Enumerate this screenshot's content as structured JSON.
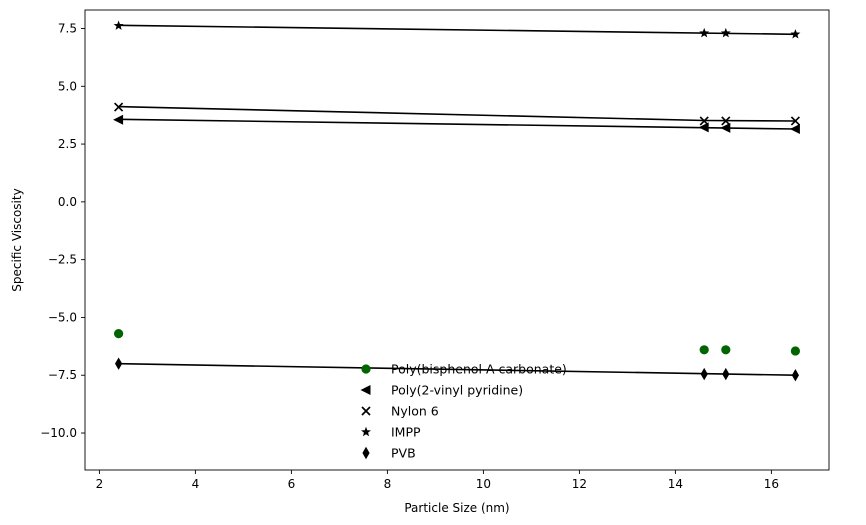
{
  "chart_data": {
    "type": "scatter",
    "title": "",
    "xlabel": "Particle Size (nm)",
    "ylabel": "Specific Viscosity",
    "xlim": [
      1.7,
      17.2
    ],
    "ylim": [
      -11.6,
      8.3
    ],
    "xticks": [
      2,
      4,
      6,
      8,
      10,
      12,
      14,
      16
    ],
    "yticks": [
      7.5,
      5.0,
      2.5,
      0.0,
      -2.5,
      -5.0,
      -7.5,
      -10.0
    ],
    "xtick_labels": [
      "2",
      "4",
      "6",
      "8",
      "10",
      "12",
      "14",
      "16"
    ],
    "ytick_labels": [
      "7.5",
      "5.0",
      "2.5",
      "0.0",
      "−2.5",
      "−5.0",
      "−7.5",
      "−10.0"
    ],
    "grid": false,
    "legend": {
      "placement": "lower-center",
      "frame": false
    },
    "series": [
      {
        "name": "Poly(bisphenol A carbonate)",
        "marker": "circle",
        "color": "#006400",
        "x": [
          2.4,
          14.6,
          15.05,
          16.5
        ],
        "y": [
          -5.7,
          -6.4,
          -6.4,
          -6.45
        ],
        "fit": null
      },
      {
        "name": "Poly(2-vinyl pyridine)",
        "marker": "triangle-left",
        "color": "#000000",
        "x": [
          2.4,
          14.6,
          15.05,
          16.5
        ],
        "y": [
          3.55,
          3.22,
          3.2,
          3.15
        ],
        "fit": [
          [
            2.4,
            3.57
          ],
          [
            16.5,
            3.15
          ]
        ]
      },
      {
        "name": "Nylon 6",
        "marker": "x",
        "color": "#000000",
        "x": [
          2.4,
          14.6,
          15.05,
          16.5
        ],
        "y": [
          4.1,
          3.5,
          3.5,
          3.5
        ],
        "fit": [
          [
            2.4,
            4.12
          ],
          [
            14.6,
            3.52
          ],
          [
            16.5,
            3.5
          ]
        ]
      },
      {
        "name": "IMPP",
        "marker": "star",
        "color": "#000000",
        "x": [
          2.4,
          14.6,
          15.05,
          16.5
        ],
        "y": [
          7.62,
          7.3,
          7.3,
          7.25
        ],
        "fit": [
          [
            2.4,
            7.64
          ],
          [
            16.5,
            7.25
          ]
        ]
      },
      {
        "name": "PVB",
        "marker": "thin-diamond",
        "color": "#000000",
        "x": [
          2.4,
          14.6,
          15.05,
          16.5
        ],
        "y": [
          -7.0,
          -7.45,
          -7.45,
          -7.5
        ],
        "fit": [
          [
            2.4,
            -7.0
          ],
          [
            16.5,
            -7.5
          ]
        ]
      }
    ]
  }
}
